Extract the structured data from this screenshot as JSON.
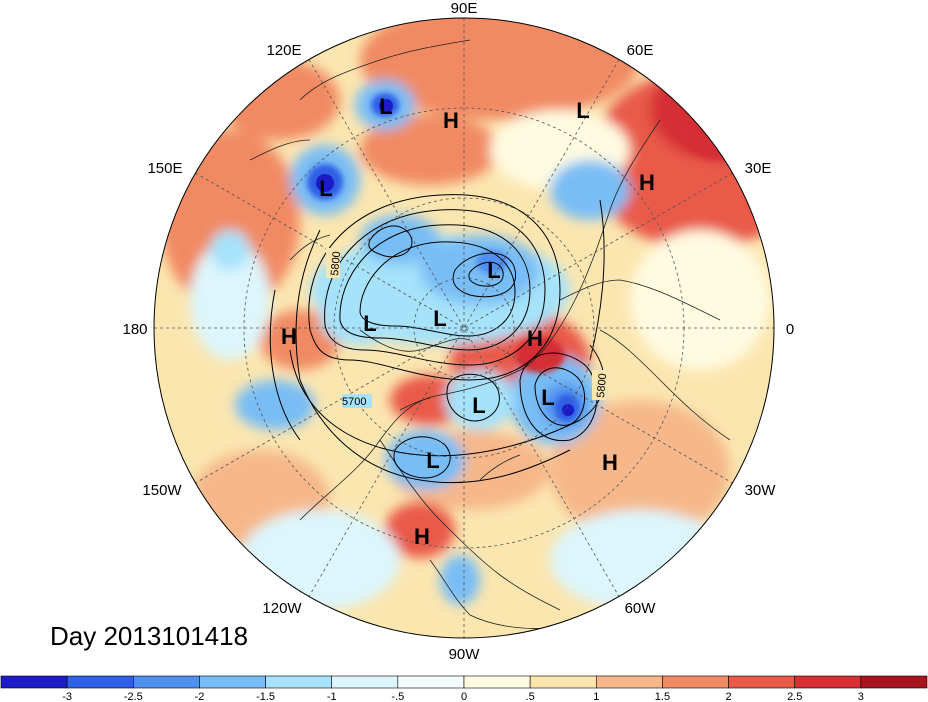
{
  "map": {
    "title": "Day 2013101418",
    "longitude_labels": [
      "90E",
      "60E",
      "30E",
      "0",
      "30W",
      "60W",
      "90W",
      "120W",
      "150W",
      "180",
      "150E",
      "120E"
    ],
    "pressure_centers": [
      {
        "type": "L",
        "name": "low-center-siberia-east"
      },
      {
        "type": "H",
        "name": "high-center-siberia"
      },
      {
        "type": "L",
        "name": "low-center-kara"
      },
      {
        "type": "L",
        "name": "low-center-kamchatka"
      },
      {
        "type": "H",
        "name": "high-center-urals"
      },
      {
        "type": "L",
        "name": "low-center-arctic-1"
      },
      {
        "type": "L",
        "name": "low-center-arctic-2"
      },
      {
        "type": "L",
        "name": "low-center-arctic-3"
      },
      {
        "type": "H",
        "name": "high-center-pacific"
      },
      {
        "type": "H",
        "name": "high-center-greenland"
      },
      {
        "type": "L",
        "name": "low-center-hudson"
      },
      {
        "type": "L",
        "name": "low-center-atlantic"
      },
      {
        "type": "L",
        "name": "low-center-western-us"
      },
      {
        "type": "H",
        "name": "high-center-azores"
      },
      {
        "type": "H",
        "name": "high-center-mexico"
      }
    ],
    "contour_labels": [
      "5800",
      "5700",
      "5800"
    ],
    "colors": {
      "neg3": "#1b1bc8",
      "neg25": "#2f5fe6",
      "neg2": "#4f8ff0",
      "neg15": "#78bdf5",
      "neg1": "#a6e2fa",
      "neg05": "#dcf6fc",
      "pos0": "#fffbe1",
      "pos05": "#fbe6b0",
      "pos1": "#f6b88a",
      "pos15": "#f18a63",
      "pos2": "#e95a49",
      "pos25": "#d62f35",
      "pos3": "#a8141e"
    }
  },
  "colorbar": {
    "ticks": [
      "-3",
      "-2.5",
      "-2",
      "-1.5",
      "-1",
      "-.5",
      "0",
      ".5",
      "1",
      "1.5",
      "2",
      "2.5",
      "3"
    ],
    "colors": [
      "#1b1bc8",
      "#2f5fe6",
      "#4f8ff0",
      "#78bdf5",
      "#a6e2fa",
      "#dcf6fc",
      "#f6fcfd",
      "#fffbe1",
      "#fbe6b0",
      "#f6b88a",
      "#f18a63",
      "#e95a49",
      "#d62f35",
      "#a8141e"
    ]
  }
}
